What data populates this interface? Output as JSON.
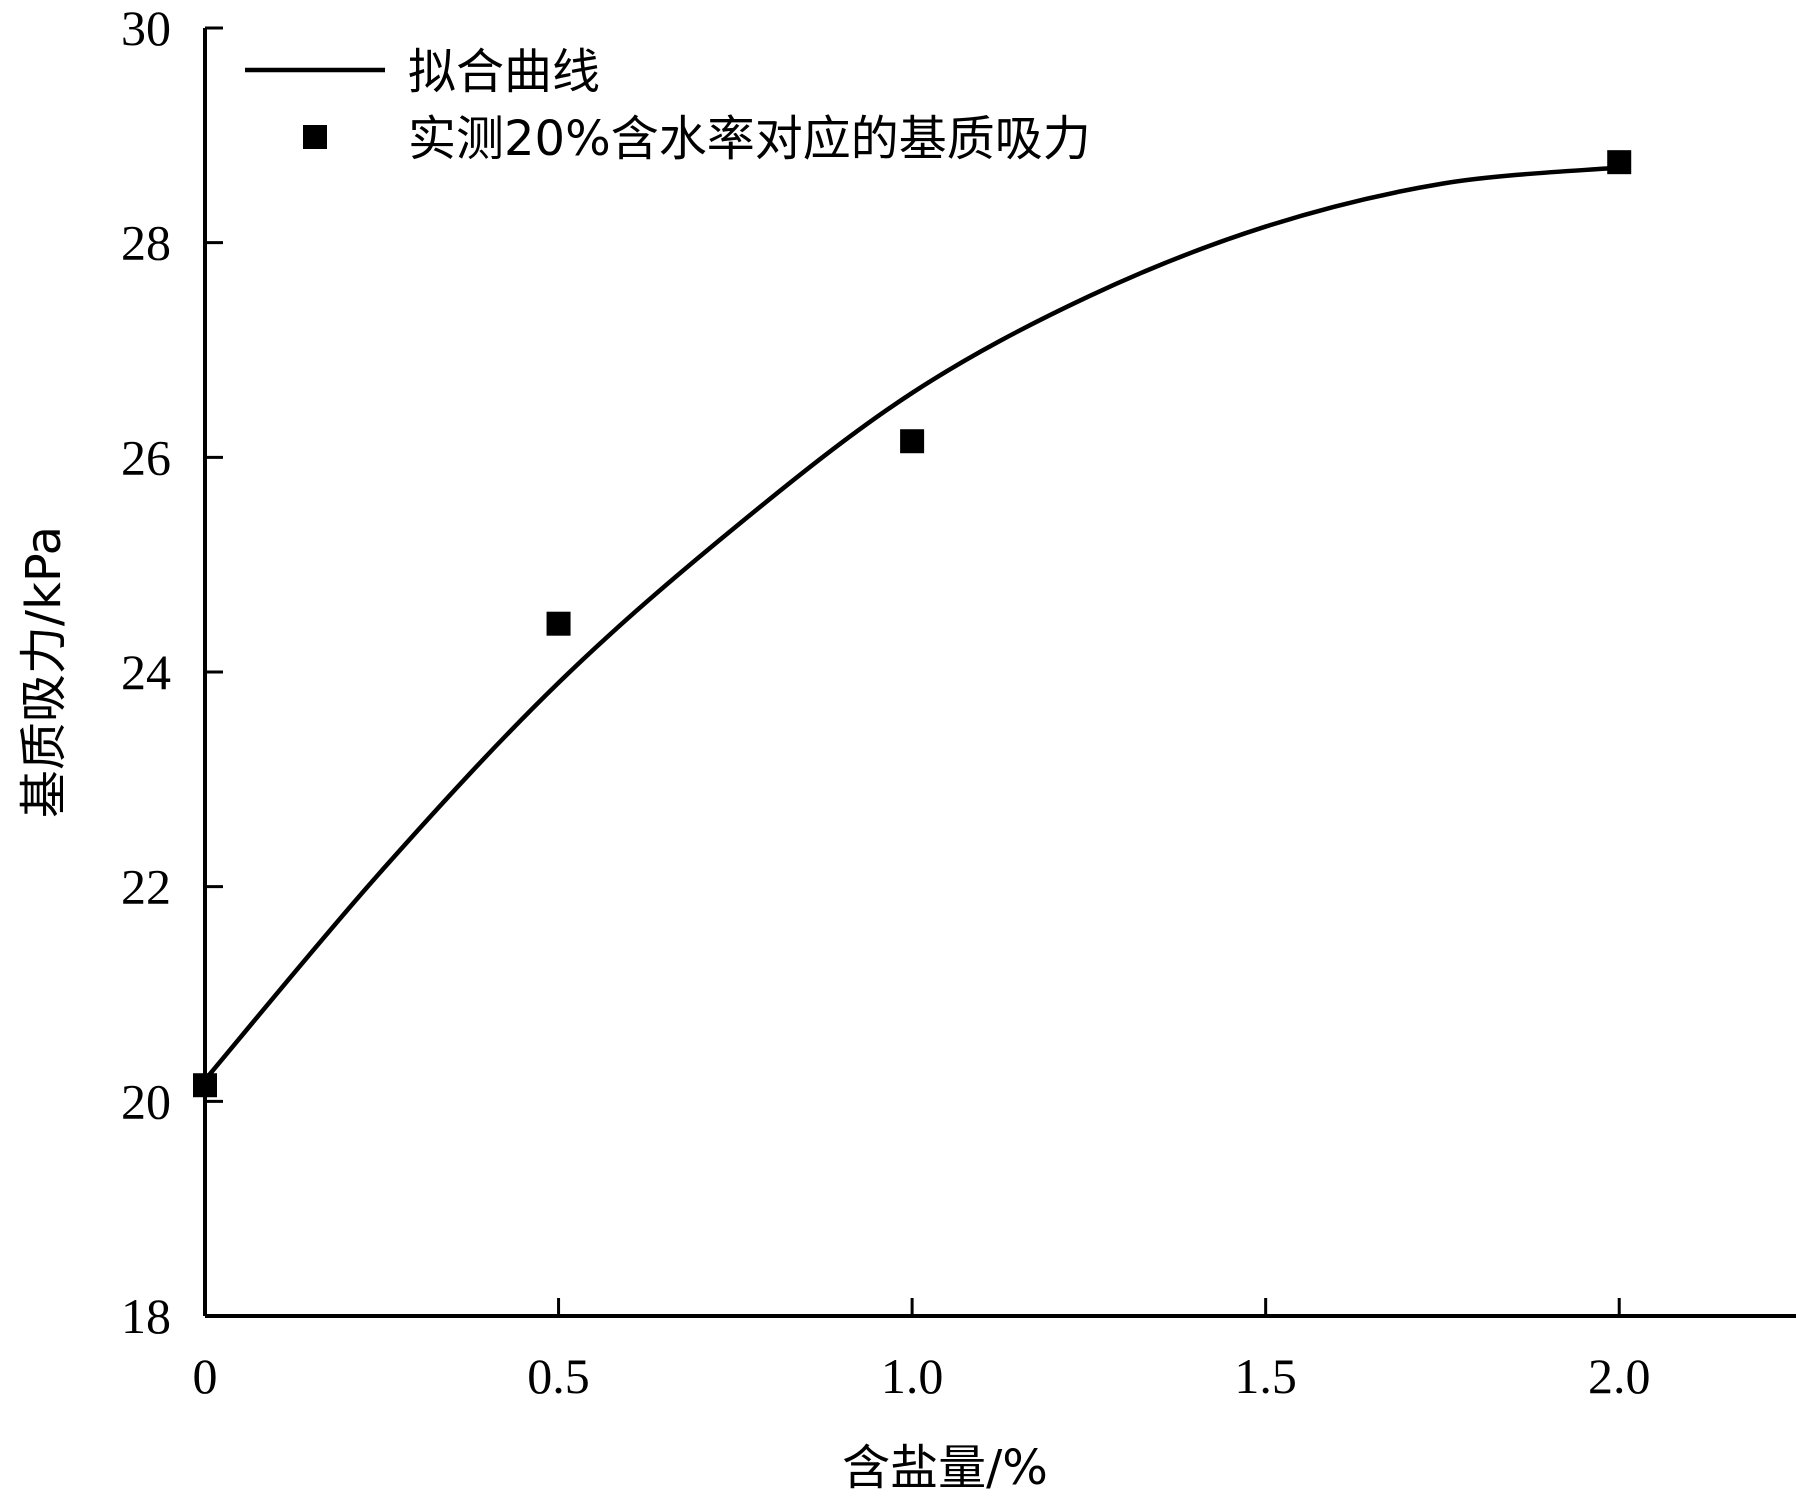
{
  "chart_data": {
    "type": "scatter",
    "title": "",
    "xlabel": "含盐量/%",
    "ylabel": "基质吸力/kPa",
    "xlim": [
      0,
      2.25
    ],
    "ylim": [
      18,
      30
    ],
    "x_ticks": [
      0,
      0.5,
      1.0,
      1.5,
      2.0
    ],
    "x_tick_labels": [
      "0",
      "0.5",
      "1.0",
      "1.5",
      "2.0"
    ],
    "y_ticks": [
      18,
      20,
      22,
      24,
      26,
      28,
      30
    ],
    "y_tick_labels": [
      "18",
      "20",
      "22",
      "24",
      "26",
      "28",
      "30"
    ],
    "grid": false,
    "legend_position": "top-left",
    "series": [
      {
        "name": "拟合曲线",
        "kind": "line",
        "x": [
          0,
          0.25,
          0.5,
          0.75,
          1.0,
          1.25,
          1.5,
          1.75,
          2.0
        ],
        "y": [
          20.2,
          22.15,
          23.9,
          25.35,
          26.6,
          27.5,
          28.15,
          28.55,
          28.7
        ]
      },
      {
        "name": "实测20%含水率对应的基质吸力",
        "kind": "scatter",
        "marker": "square",
        "x": [
          0,
          0.5,
          1.0,
          2.0
        ],
        "y": [
          20.15,
          24.45,
          26.15,
          28.75
        ]
      }
    ]
  }
}
